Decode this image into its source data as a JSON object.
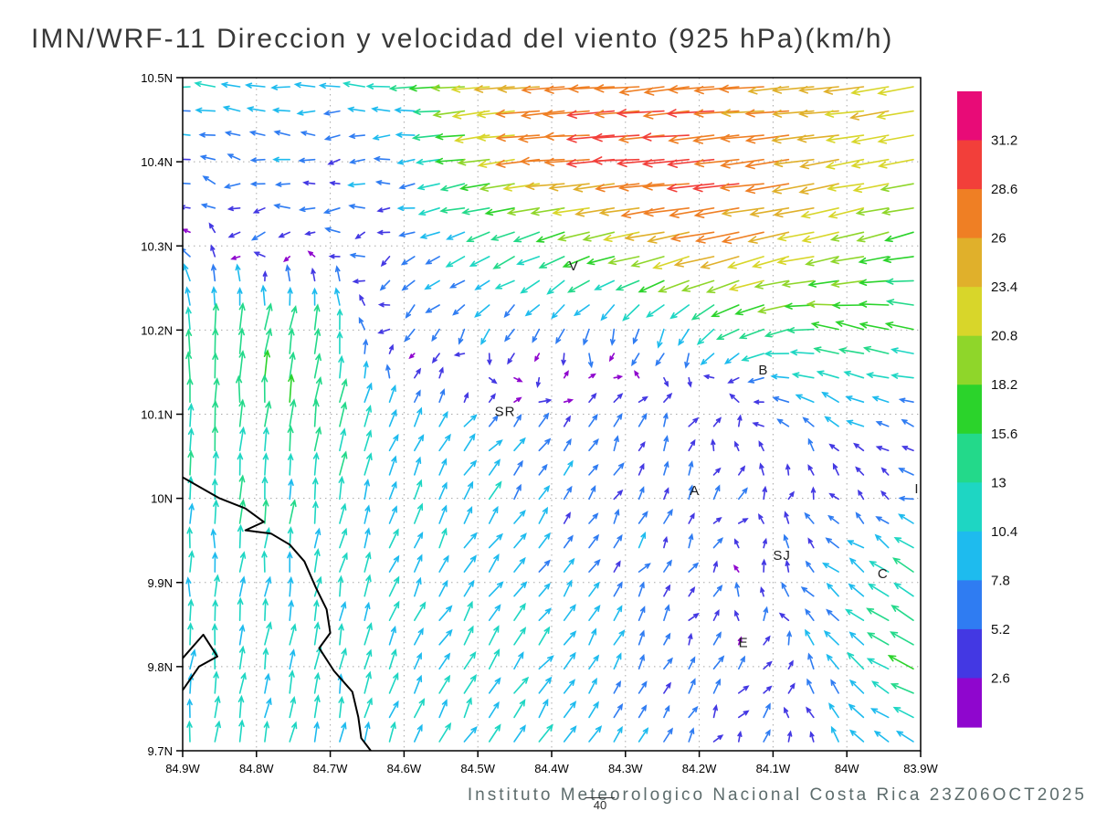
{
  "title": "IMN/WRF-11 Direccion y velocidad del viento (925 hPa)(km/h)",
  "footer": {
    "credit": "Instituto Meteorologico Nacional Costa Rica  23Z06OCT2025",
    "marker_value": "40"
  },
  "chart_data": {
    "type": "vector-field",
    "title": "IMN/WRF-11 Direccion y velocidad del viento (925 hPa)(km/h)",
    "units": "km/h",
    "pressure_level": "925 hPa",
    "grid": true,
    "x_ticks": [
      "84.9W",
      "84.8W",
      "84.7W",
      "84.6W",
      "84.5W",
      "84.4W",
      "84.3W",
      "84.2W",
      "84.1W",
      "84W",
      "83.9W"
    ],
    "x_tick_values": [
      84.9,
      84.8,
      84.7,
      84.6,
      84.5,
      84.4,
      84.3,
      84.2,
      84.1,
      84.0,
      83.9
    ],
    "y_ticks": [
      "10.5N",
      "10.4N",
      "10.3N",
      "10.2N",
      "10.1N",
      "10N",
      "9.9N",
      "9.8N",
      "9.7N"
    ],
    "y_tick_values": [
      10.5,
      10.4,
      10.3,
      10.2,
      10.1,
      10.0,
      9.9,
      9.8,
      9.7
    ],
    "lon_range_w": [
      84.9,
      83.9
    ],
    "lat_range": [
      9.7,
      10.5
    ],
    "colorbar": {
      "levels": [
        2.6,
        5.2,
        7.8,
        10.4,
        13,
        15.6,
        18.2,
        20.8,
        23.4,
        26,
        28.6,
        31.2
      ],
      "labels_desc": [
        "31.2",
        "28.6",
        "26",
        "23.4",
        "20.8",
        "18.2",
        "15.6",
        "13",
        "10.4",
        "7.8",
        "5.2",
        "2.6"
      ],
      "colors_low_to_high": [
        "#8f06ce",
        "#4338e3",
        "#2f7cf2",
        "#1ebbee",
        "#1ed6c3",
        "#23d98a",
        "#2bd32b",
        "#8fd62a",
        "#d8d62a",
        "#e0b02b",
        "#ef7f24",
        "#f23f3a",
        "#e80b77"
      ]
    },
    "stations": [
      {
        "label": "V",
        "lon": 84.37,
        "lat": 10.271
      },
      {
        "label": "B",
        "lon": 84.113,
        "lat": 10.147
      },
      {
        "label": "SR",
        "lon": 84.463,
        "lat": 10.098
      },
      {
        "label": "A",
        "lon": 84.206,
        "lat": 10.004
      },
      {
        "label": "SJ",
        "lon": 84.088,
        "lat": 9.927
      },
      {
        "label": "C",
        "lon": 83.951,
        "lat": 9.905
      },
      {
        "label": "E",
        "lon": 84.14,
        "lat": 9.823
      },
      {
        "label": "I",
        "lon": 83.905,
        "lat": 10.006
      }
    ],
    "coastlines": [
      [
        [
          84.9,
          10.025
        ],
        [
          84.85,
          10.0
        ],
        [
          84.815,
          9.988
        ],
        [
          84.79,
          9.972
        ],
        [
          84.815,
          9.962
        ],
        [
          84.78,
          9.958
        ],
        [
          84.755,
          9.945
        ],
        [
          84.735,
          9.925
        ],
        [
          84.72,
          9.895
        ],
        [
          84.705,
          9.868
        ],
        [
          84.7,
          9.84
        ],
        [
          84.715,
          9.822
        ],
        [
          84.695,
          9.795
        ],
        [
          84.67,
          9.77
        ],
        [
          84.662,
          9.74
        ],
        [
          84.658,
          9.715
        ],
        [
          84.645,
          9.7
        ]
      ],
      [
        [
          84.9,
          9.81
        ],
        [
          84.872,
          9.838
        ],
        [
          84.853,
          9.812
        ],
        [
          84.878,
          9.8
        ],
        [
          84.9,
          9.772
        ]
      ]
    ],
    "wind_grid": {
      "comment": "u eastward km/h, v northward km/h, rows north-to-south",
      "lons_w": [
        84.9,
        84.8,
        84.7,
        84.6,
        84.5,
        84.4,
        84.3,
        84.2,
        84.1,
        84.0,
        83.9
      ],
      "lats": [
        10.5,
        10.4,
        10.3,
        10.2,
        10.1,
        10.0,
        9.9,
        9.8,
        9.7
      ],
      "u": [
        [
          -10,
          -11,
          -11,
          -12,
          -22,
          -27,
          -28,
          -28,
          -26,
          -24,
          -21
        ],
        [
          -5,
          -6,
          -5,
          -7,
          -18,
          -27,
          -29,
          -30,
          -27,
          -24,
          -20
        ],
        [
          -3,
          -4,
          -5,
          -6,
          -10,
          -14,
          -18,
          -26,
          -24,
          -20,
          -16
        ],
        [
          0,
          2,
          2,
          -3,
          -4,
          -3,
          -2,
          -6,
          -14,
          -16,
          -16
        ],
        [
          0,
          1,
          2,
          4,
          5,
          4,
          3,
          2,
          -4,
          -8,
          -6
        ],
        [
          0,
          1,
          2,
          4,
          5,
          4,
          3,
          2,
          1,
          -2,
          -4
        ],
        [
          0,
          1,
          2,
          4,
          6,
          5,
          3,
          2,
          -2,
          -8,
          -12
        ],
        [
          1,
          2,
          2,
          4,
          6,
          6,
          4,
          3,
          1,
          -6,
          -14
        ],
        [
          1,
          2,
          2,
          4,
          5,
          6,
          4,
          3,
          2,
          -4,
          -10
        ]
      ],
      "v": [
        [
          1,
          0,
          1,
          0,
          -2,
          -2,
          -2,
          -3,
          -2,
          -2,
          -3
        ],
        [
          2,
          1,
          -1,
          0,
          -3,
          -2,
          -2,
          -2,
          -3,
          -4,
          -4
        ],
        [
          3,
          -2,
          1,
          -2,
          -4,
          -6,
          -4,
          -6,
          -6,
          -5,
          -4
        ],
        [
          13,
          15,
          13,
          -6,
          -6,
          -7,
          -8,
          -8,
          -4,
          3,
          4
        ],
        [
          13,
          15,
          14,
          8,
          6,
          4,
          6,
          4,
          2,
          4,
          2
        ],
        [
          11,
          12,
          11,
          9,
          8,
          6,
          5,
          4,
          3,
          2,
          2
        ],
        [
          10,
          11,
          11,
          9,
          8,
          6,
          5,
          4,
          3,
          6,
          8
        ],
        [
          10,
          11,
          11,
          9,
          9,
          8,
          6,
          5,
          4,
          8,
          6
        ],
        [
          10,
          11,
          10,
          9,
          9,
          8,
          6,
          5,
          4,
          6,
          4
        ]
      ]
    }
  }
}
